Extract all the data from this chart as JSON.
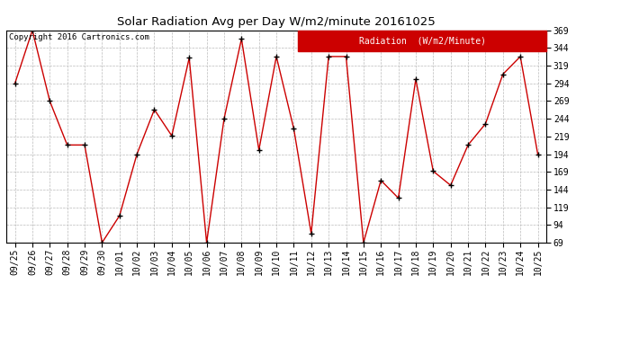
{
  "title": "Solar Radiation Avg per Day W/m2/minute 20161025",
  "copyright": "Copyright 2016 Cartronics.com",
  "legend_label": "Radiation  (W/m2/Minute)",
  "dates": [
    "09/25",
    "09/26",
    "09/27",
    "09/28",
    "09/29",
    "09/30",
    "10/01",
    "10/02",
    "10/03",
    "10/04",
    "10/05",
    "10/06",
    "10/07",
    "10/08",
    "10/09",
    "10/10",
    "10/11",
    "10/12",
    "10/13",
    "10/14",
    "10/15",
    "10/16",
    "10/17",
    "10/18",
    "10/19",
    "10/20",
    "10/21",
    "10/22",
    "10/23",
    "10/24",
    "10/25"
  ],
  "values": [
    294,
    369,
    269,
    207,
    207,
    69,
    107,
    194,
    257,
    220,
    330,
    69,
    244,
    357,
    200,
    332,
    230,
    82,
    332,
    332,
    69,
    157,
    132,
    300,
    170,
    150,
    207,
    237,
    307,
    332,
    194
  ],
  "ymin": 69.0,
  "ymax": 369.0,
  "yticks": [
    69.0,
    94.0,
    119.0,
    144.0,
    169.0,
    194.0,
    219.0,
    244.0,
    269.0,
    294.0,
    319.0,
    344.0,
    369.0
  ],
  "line_color": "#cc0000",
  "marker_color": "#000000",
  "bg_color": "#ffffff",
  "grid_color": "#bbbbbb",
  "legend_bg": "#cc0000",
  "legend_text_color": "#ffffff",
  "title_fontsize": 9.5,
  "copyright_fontsize": 6.5,
  "tick_fontsize": 7,
  "legend_fontsize": 7
}
